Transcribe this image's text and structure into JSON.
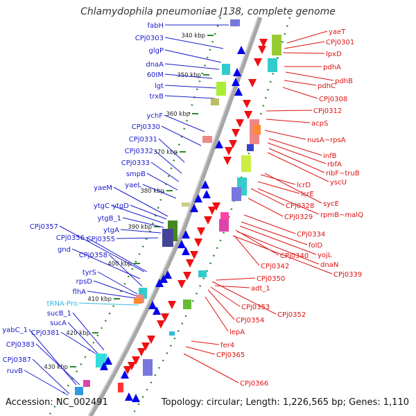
{
  "title": "Chlamydophila pneumoniae J138, complete genome",
  "footer": {
    "accession": "Accession: NC_002491",
    "topology": "Topology: circular; Length: 1,226,565 bp; Genes: 1,110"
  },
  "colors": {
    "forward_label": "#1a1acc",
    "reverse_label": "#dd1111",
    "trna_label": "#33bbdd",
    "tick_green": "#2a8a2a",
    "backbone": "#999999"
  },
  "ticks": [
    "340 kbp",
    "350 kbp",
    "360 kbp",
    "370 kbp",
    "380 kbp",
    "390 kbp",
    "400 kbp",
    "410 kbp",
    "420 kbp",
    "430 kbp"
  ],
  "forward_genes": [
    "fabH",
    "CPj0303",
    "glgP",
    "dnaA",
    "60IM",
    "lgt",
    "trxB",
    "ychF",
    "CPj0330",
    "CPj0331",
    "CPj0332",
    "CPj0333",
    "smpB",
    "yaeL",
    "yaeM",
    "ytgC",
    "ytgD",
    "ytgB_1",
    "ytgA",
    "CPj0357",
    "CPj0356",
    "CPj0355",
    "gnd",
    "CPj0358",
    "tyrS",
    "rpsD",
    "flhA",
    "sucB_1",
    "sucA",
    "yabC_1",
    "CPj0381",
    "CPj0383",
    "CPj0387",
    "ruvB"
  ],
  "trna_genes": [
    "tRNA-Pro"
  ],
  "reverse_genes": [
    "yaeT",
    "CPj0301",
    "lpxD",
    "pdhA",
    "pdhB",
    "pdhC",
    "CPj0308",
    "CPj0312",
    "acpS",
    "nusA~rpsA",
    "infB",
    "rbfA",
    "ribF~truB",
    "yscU",
    "lcrD",
    "lcrE",
    "sycE",
    "CPj0328",
    "rpmB~malQ",
    "CPj0329",
    "CPj0334",
    "folD",
    "yojL",
    "dnaN",
    "CPj0339",
    "CPj0340",
    "CPj0342",
    "CPj0350",
    "adt_1",
    "CPj0353",
    "CPj0352",
    "CPj0354",
    "lepA",
    "fer4",
    "CPj0365",
    "CPj0366"
  ]
}
